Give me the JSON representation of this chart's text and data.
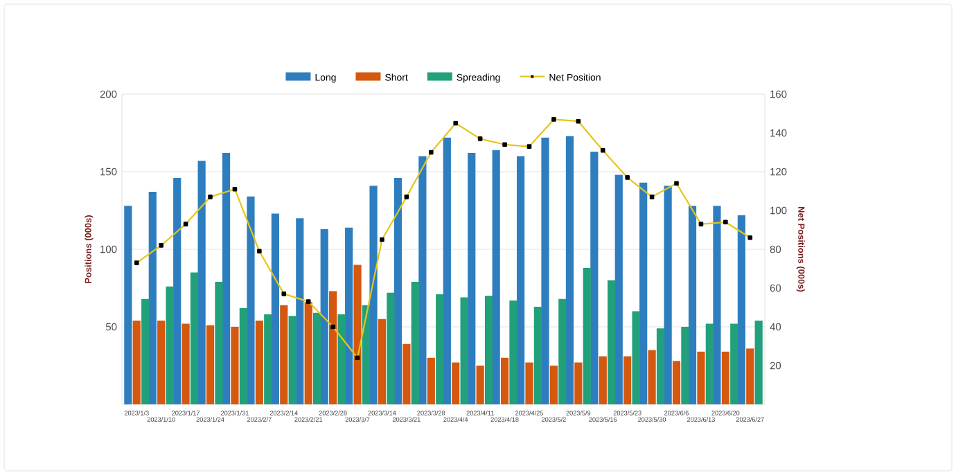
{
  "chart_data": {
    "type": "bar",
    "xlabel": null,
    "categories": [
      "2023/1/3",
      "2023/1/10",
      "2023/1/17",
      "2023/1/24",
      "2023/1/31",
      "2023/2/7",
      "2023/2/14",
      "2023/2/21",
      "2023/2/28",
      "2023/3/7",
      "2023/3/14",
      "2023/3/21",
      "2023/3/28",
      "2023/4/4",
      "2023/4/11",
      "2023/4/18",
      "2023/4/25",
      "2023/5/2",
      "2023/5/9",
      "2023/5/16",
      "2023/5/23",
      "2023/5/30",
      "2023/6/6",
      "2023/6/13",
      "2023/6/20",
      "2023/6/27"
    ],
    "series": [
      {
        "name": "Long",
        "color": "#2e7ebf",
        "values": [
          128,
          137,
          146,
          157,
          162,
          134,
          123,
          120,
          113,
          114,
          141,
          146,
          160,
          172,
          162,
          164,
          160,
          172,
          173,
          163,
          148,
          143,
          141,
          128,
          128,
          122
        ]
      },
      {
        "name": "Short",
        "color": "#d4580e",
        "values": [
          54,
          54,
          52,
          51,
          50,
          54,
          64,
          66,
          73,
          90,
          55,
          39,
          30,
          27,
          25,
          30,
          27,
          25,
          27,
          31,
          31,
          35,
          28,
          34,
          34,
          36
        ]
      },
      {
        "name": "Spreading",
        "color": "#21a07b",
        "values": [
          68,
          76,
          85,
          79,
          62,
          58,
          57,
          59,
          58,
          64,
          72,
          79,
          71,
          69,
          70,
          67,
          63,
          68,
          88,
          80,
          60,
          49,
          50,
          52,
          52,
          54
        ]
      },
      {
        "name": "Net Position",
        "type": "line",
        "axis": "y2",
        "color": "#e6c619",
        "marker": "square",
        "values": [
          73,
          82,
          93,
          107,
          111,
          79,
          57,
          53,
          40,
          24,
          85,
          107,
          130,
          145,
          137,
          134,
          133,
          147,
          146,
          131,
          117,
          107,
          114,
          93,
          94,
          86
        ]
      }
    ],
    "ylabel": "Positions (000s)",
    "y2label": "Net Positions (000s)",
    "ylim": [
      0,
      200
    ],
    "yticks": [
      50,
      100,
      150,
      200
    ],
    "y2lim": [
      0,
      160
    ],
    "y2ticks": [
      20,
      40,
      60,
      80,
      100,
      120,
      140,
      160
    ],
    "grid": "y",
    "legend": "top"
  }
}
